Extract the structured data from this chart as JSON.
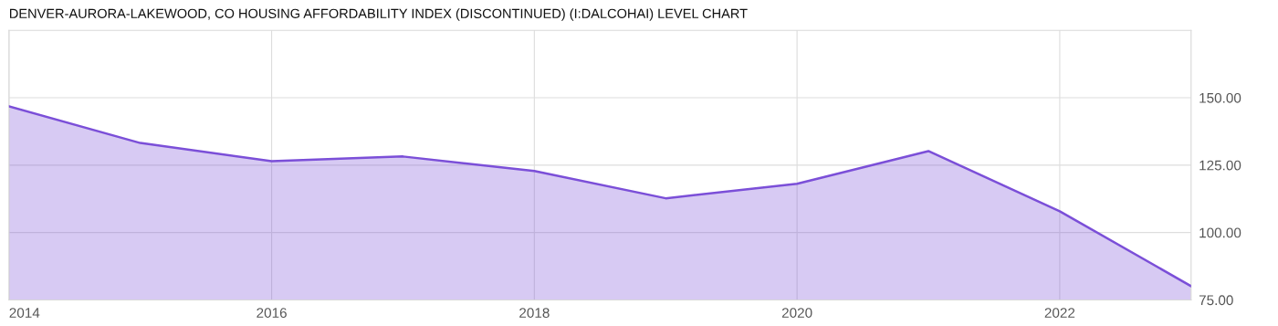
{
  "chart_data": {
    "type": "area",
    "title": "DENVER-AURORA-LAKEWOOD, CO HOUSING AFFORDABILITY INDEX (DISCONTINUED) (I:DALCOHAI) LEVEL CHART",
    "x": [
      2014,
      2015,
      2016,
      2017,
      2018,
      2019,
      2020,
      2021,
      2022,
      2023
    ],
    "series": [
      {
        "color": "#7b4fd8",
        "values": [
          146.8,
          133.2,
          126.5,
          128.2,
          122.8,
          112.7,
          118.1,
          130.2,
          107.9,
          80.1
        ]
      }
    ],
    "xlim": [
      2014,
      2023
    ],
    "xticks": [
      2014,
      2016,
      2018,
      2020,
      2022
    ],
    "ylim": [
      75,
      175
    ],
    "yticks": [
      {
        "value": 75,
        "label": "75.00"
      },
      {
        "value": 100,
        "label": "100.00"
      },
      {
        "value": 125,
        "label": "125.00"
      },
      {
        "value": 150,
        "label": "150.00"
      }
    ],
    "grid": true
  }
}
